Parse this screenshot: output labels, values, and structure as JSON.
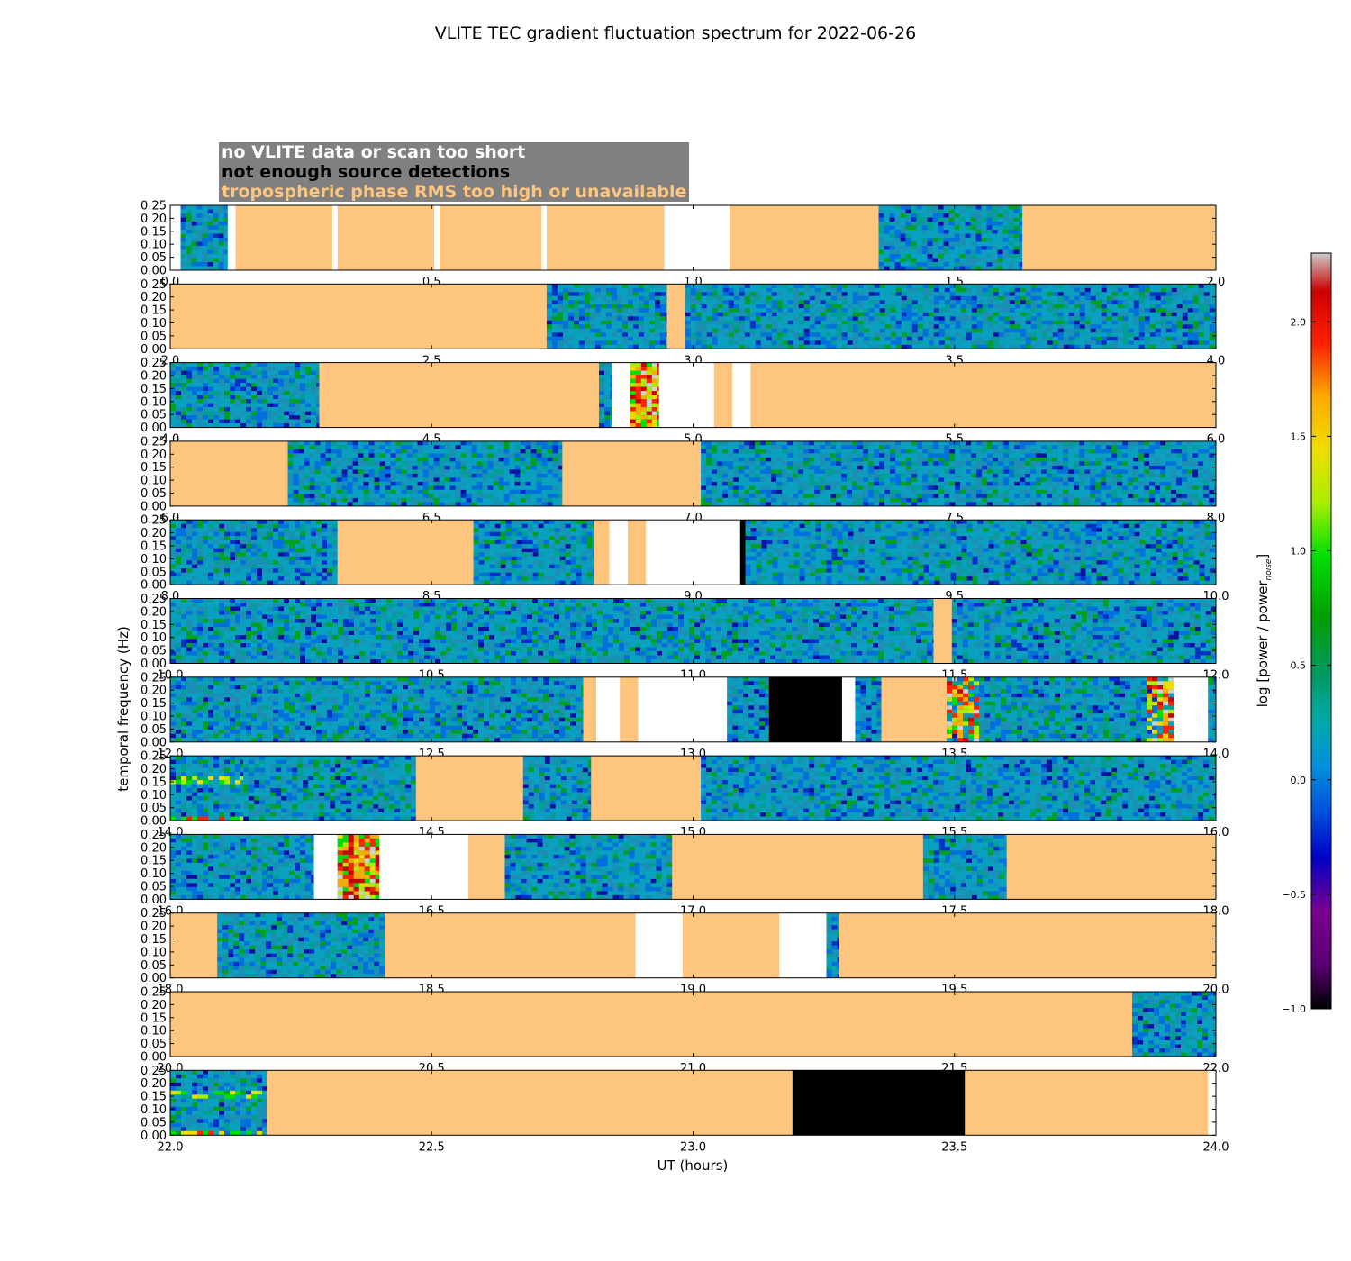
{
  "chart_data": {
    "type": "heatmap",
    "title": "VLITE TEC gradient fluctuation spectrum for 2022-06-26",
    "xlabel": "UT (hours)",
    "ylabel": "temporal frequency (Hz)",
    "ylim": [
      0,
      0.25
    ],
    "yticks": [
      "0.00",
      "0.05",
      "0.10",
      "0.15",
      "0.20",
      "0.25"
    ],
    "colorbar": {
      "label": "log [power / power",
      "label_sub": "noise",
      "label_close": "]",
      "range": [
        -1.0,
        2.3
      ],
      "ticks": [
        "−1.0",
        "−0.5",
        "0.0",
        "0.5",
        "1.0",
        "1.5",
        "2.0"
      ],
      "tick_values": [
        -1.0,
        -0.5,
        0.0,
        0.5,
        1.0,
        1.5,
        2.0
      ],
      "colormap": "nipy_spectral"
    },
    "legend": [
      {
        "text": "no VLITE data or scan too short",
        "color": "#ffffff",
        "meaning": "white"
      },
      {
        "text": "not enough source detections",
        "color": "#000000",
        "meaning": "black"
      },
      {
        "text": "tropospheric phase RMS too high or unavailable",
        "color": "#fdc57e",
        "meaning": "orange"
      }
    ],
    "colors": {
      "nodata": "#ffffff",
      "nodetect": "#000000",
      "tropo": "#fdc57e",
      "low_power": "#1c8fb4"
    },
    "panels": [
      {
        "xlim": [
          0,
          2
        ],
        "xticks": [
          "0.0",
          "0.5",
          "1.0",
          "1.5",
          "2.0"
        ],
        "segments": [
          [
            "white",
            0,
            0.02
          ],
          [
            "data",
            0.02,
            0.11
          ],
          [
            "white",
            0.11,
            0.125
          ],
          [
            "orange",
            0.125,
            0.31
          ],
          [
            "white",
            0.31,
            0.32
          ],
          [
            "orange",
            0.32,
            0.505
          ],
          [
            "white",
            0.505,
            0.515
          ],
          [
            "orange",
            0.515,
            0.71
          ],
          [
            "white",
            0.71,
            0.72
          ],
          [
            "orange",
            0.72,
            0.945
          ],
          [
            "white",
            0.945,
            1.07
          ],
          [
            "orange",
            1.07,
            1.355
          ],
          [
            "data",
            1.355,
            1.63
          ],
          [
            "orange",
            1.63,
            2.0
          ]
        ]
      },
      {
        "xlim": [
          2,
          4
        ],
        "xticks": [
          "2.0",
          "2.5",
          "3.0",
          "3.5",
          "4.0"
        ],
        "segments": [
          [
            "orange",
            2.0,
            2.72
          ],
          [
            "data",
            2.72,
            2.95
          ],
          [
            "orange",
            2.95,
            2.985
          ],
          [
            "data",
            2.985,
            4.0
          ]
        ]
      },
      {
        "xlim": [
          4,
          6
        ],
        "xticks": [
          "4.0",
          "4.5",
          "5.0",
          "5.5",
          "6.0"
        ],
        "segments": [
          [
            "data",
            4.0,
            4.285
          ],
          [
            "orange",
            4.285,
            4.82
          ],
          [
            "data",
            4.82,
            4.845
          ],
          [
            "white",
            4.845,
            4.88
          ],
          [
            "hot",
            4.88,
            4.935
          ],
          [
            "white",
            4.935,
            5.04
          ],
          [
            "orange",
            5.04,
            5.075
          ],
          [
            "white",
            5.075,
            5.11
          ],
          [
            "orange",
            5.11,
            6.0
          ]
        ]
      },
      {
        "xlim": [
          6,
          8
        ],
        "xticks": [
          "6.0",
          "6.5",
          "7.0",
          "7.5",
          "8.0"
        ],
        "segments": [
          [
            "orange",
            6.0,
            6.225
          ],
          [
            "data",
            6.225,
            6.75
          ],
          [
            "orange",
            6.75,
            7.015
          ],
          [
            "data",
            7.015,
            8.0
          ]
        ]
      },
      {
        "xlim": [
          8,
          10
        ],
        "xticks": [
          "8.0",
          "8.5",
          "9.0",
          "9.5",
          "10.0"
        ],
        "segments": [
          [
            "data",
            8.0,
            8.32
          ],
          [
            "orange",
            8.32,
            8.58
          ],
          [
            "data",
            8.58,
            8.81
          ],
          [
            "orange",
            8.81,
            8.84
          ],
          [
            "white",
            8.84,
            8.875
          ],
          [
            "orange",
            8.875,
            8.91
          ],
          [
            "white",
            8.91,
            9.09
          ],
          [
            "black",
            9.09,
            9.1
          ],
          [
            "data",
            9.1,
            10.0
          ]
        ]
      },
      {
        "xlim": [
          10,
          12
        ],
        "xticks": [
          "10.0",
          "10.5",
          "11.0",
          "11.5",
          "12.0"
        ],
        "segments": [
          [
            "data",
            10.0,
            11.46
          ],
          [
            "orange",
            11.46,
            11.495
          ],
          [
            "data",
            11.495,
            12.0
          ]
        ]
      },
      {
        "xlim": [
          12,
          14
        ],
        "xticks": [
          "12.0",
          "12.5",
          "13.0",
          "13.5",
          "14.0"
        ],
        "segments": [
          [
            "data",
            12.0,
            12.79
          ],
          [
            "orange",
            12.79,
            12.815
          ],
          [
            "white",
            12.815,
            12.86
          ],
          [
            "orange",
            12.86,
            12.895
          ],
          [
            "white",
            12.895,
            13.065
          ],
          [
            "data",
            13.065,
            13.145
          ],
          [
            "black",
            13.145,
            13.285
          ],
          [
            "white",
            13.285,
            13.31
          ],
          [
            "data",
            13.31,
            13.36
          ],
          [
            "orange",
            13.36,
            13.485
          ],
          [
            "warmdata",
            13.485,
            13.92
          ],
          [
            "white",
            13.92,
            13.985
          ],
          [
            "data",
            13.985,
            14.0
          ]
        ]
      },
      {
        "xlim": [
          14,
          16
        ],
        "xticks": [
          "14.0",
          "14.5",
          "15.0",
          "15.5",
          "16.0"
        ],
        "segments": [
          [
            "lowstripe",
            14.0,
            14.14
          ],
          [
            "data",
            14.14,
            14.47
          ],
          [
            "orange",
            14.47,
            14.675
          ],
          [
            "data",
            14.675,
            14.805
          ],
          [
            "orange",
            14.805,
            15.015
          ],
          [
            "data",
            15.015,
            16.0
          ]
        ]
      },
      {
        "xlim": [
          16,
          18
        ],
        "xticks": [
          "16.0",
          "16.5",
          "17.0",
          "17.5",
          "18.0"
        ],
        "segments": [
          [
            "data",
            16.0,
            16.275
          ],
          [
            "white",
            16.275,
            16.32
          ],
          [
            "hot",
            16.32,
            16.4
          ],
          [
            "white",
            16.4,
            16.57
          ],
          [
            "orange",
            16.57,
            16.64
          ],
          [
            "data",
            16.64,
            16.96
          ],
          [
            "orange",
            16.96,
            17.44
          ],
          [
            "data",
            17.44,
            17.6
          ],
          [
            "orange",
            17.6,
            18.0
          ]
        ]
      },
      {
        "xlim": [
          18,
          20
        ],
        "xticks": [
          "18.0",
          "18.5",
          "19.0",
          "19.5",
          "20.0"
        ],
        "segments": [
          [
            "orange",
            18.0,
            18.09
          ],
          [
            "data",
            18.09,
            18.41
          ],
          [
            "orange",
            18.41,
            18.89
          ],
          [
            "white",
            18.89,
            18.98
          ],
          [
            "orange",
            18.98,
            19.165
          ],
          [
            "white",
            19.165,
            19.255
          ],
          [
            "data",
            19.255,
            19.28
          ],
          [
            "orange",
            19.28,
            20.0
          ]
        ]
      },
      {
        "xlim": [
          20,
          22
        ],
        "xticks": [
          "20.0",
          "20.5",
          "21.0",
          "21.5",
          "22.0"
        ],
        "segments": [
          [
            "orange",
            20.0,
            21.84
          ],
          [
            "data",
            21.84,
            22.0
          ]
        ]
      },
      {
        "xlim": [
          22,
          24
        ],
        "xticks": [
          "22.0",
          "22.5",
          "23.0",
          "23.5",
          "24.0"
        ],
        "segments": [
          [
            "lowstripe",
            22.0,
            22.185
          ],
          [
            "orange",
            22.185,
            23.19
          ],
          [
            "black",
            23.19,
            23.52
          ],
          [
            "orange",
            23.52,
            23.985
          ],
          [
            "white",
            23.985,
            24.0
          ]
        ]
      }
    ]
  }
}
